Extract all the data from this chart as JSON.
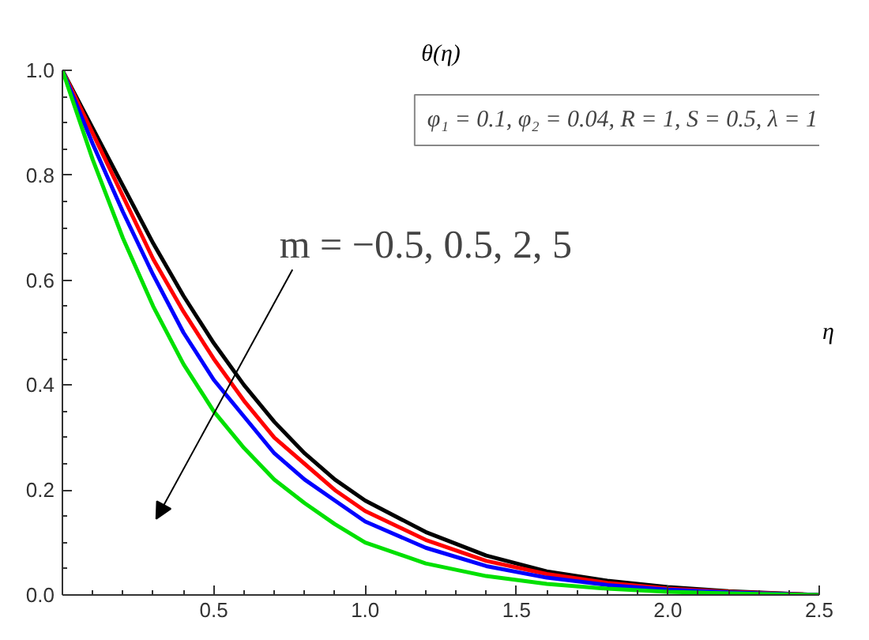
{
  "chart_data": {
    "type": "line",
    "xlabel": "η",
    "ylabel": "θ(η)",
    "x": [
      0,
      0.1,
      0.2,
      0.3,
      0.4,
      0.5,
      0.6,
      0.7,
      0.8,
      0.9,
      1.0,
      1.2,
      1.4,
      1.6,
      1.8,
      2.0,
      2.2,
      2.5
    ],
    "series": [
      {
        "color": "#000000",
        "values": [
          1,
          0.89,
          0.78,
          0.67,
          0.57,
          0.48,
          0.4,
          0.33,
          0.27,
          0.22,
          0.18,
          0.12,
          0.075,
          0.045,
          0.027,
          0.015,
          0.007,
          0
        ]
      },
      {
        "color": "#ff0000",
        "values": [
          1,
          0.88,
          0.76,
          0.64,
          0.54,
          0.45,
          0.37,
          0.3,
          0.25,
          0.2,
          0.16,
          0.105,
          0.065,
          0.04,
          0.023,
          0.012,
          0.006,
          0
        ]
      },
      {
        "color": "#0000ff",
        "values": [
          1,
          0.86,
          0.73,
          0.61,
          0.5,
          0.41,
          0.34,
          0.27,
          0.22,
          0.18,
          0.14,
          0.09,
          0.055,
          0.033,
          0.019,
          0.01,
          0.005,
          0
        ]
      },
      {
        "color": "#00e000",
        "values": [
          1,
          0.83,
          0.68,
          0.55,
          0.44,
          0.35,
          0.28,
          0.22,
          0.175,
          0.135,
          0.1,
          0.06,
          0.036,
          0.021,
          0.012,
          0.006,
          0.003,
          0
        ]
      }
    ],
    "xlim": [
      0,
      2.5
    ],
    "ylim": [
      0,
      1.0
    ],
    "xticks": [
      {
        "value": 0.5,
        "label": "0.5"
      },
      {
        "value": 1.0,
        "label": "1.0"
      },
      {
        "value": 1.5,
        "label": "1.5"
      },
      {
        "value": 2.0,
        "label": "2.0"
      },
      {
        "value": 2.5,
        "label": "2.5"
      }
    ],
    "yticks": [
      {
        "value": 0,
        "label": "0.0"
      },
      {
        "value": 0.2,
        "label": "0.2"
      },
      {
        "value": 0.4,
        "label": "0.4"
      },
      {
        "value": 0.6,
        "label": "0.6"
      },
      {
        "value": 0.8,
        "label": "0.8"
      },
      {
        "value": 1.0,
        "label": "1.0"
      }
    ],
    "annotations": [
      "φ₁ = 0.1, φ₂ = 0.04, R = 1, S = 0.5, λ = 1",
      "m = −0.5, 0.5, 2, 5"
    ],
    "grid": false,
    "marker": "none",
    "line_style": "solid"
  }
}
